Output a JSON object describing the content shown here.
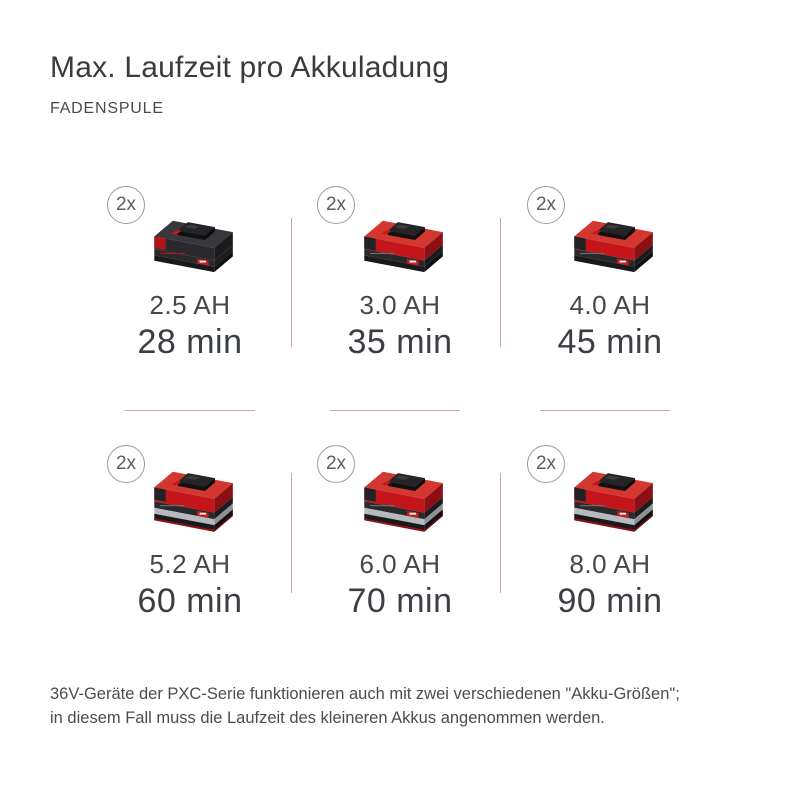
{
  "header": {
    "title": "Max. Laufzeit pro Akkuladung",
    "subtitle": "FADENSPULE"
  },
  "cells": [
    {
      "multiplier": "2x",
      "capacity": "2.5 AH",
      "runtime": "28 min",
      "battery_variant": "slim-black",
      "battery_name": "pxc-battery-2.5ah"
    },
    {
      "multiplier": "2x",
      "capacity": "3.0 AH",
      "runtime": "35 min",
      "battery_variant": "slim-red",
      "battery_name": "pxc-battery-3.0ah"
    },
    {
      "multiplier": "2x",
      "capacity": "4.0 AH",
      "runtime": "45 min",
      "battery_variant": "slim-red",
      "battery_name": "pxc-battery-4.0ah"
    },
    {
      "multiplier": "2x",
      "capacity": "5.2 AH",
      "runtime": "60 min",
      "battery_variant": "tall-red",
      "battery_name": "pxc-battery-5.2ah"
    },
    {
      "multiplier": "2x",
      "capacity": "6.0 AH",
      "runtime": "70 min",
      "battery_variant": "tall-red",
      "battery_name": "pxc-battery-6.0ah"
    },
    {
      "multiplier": "2x",
      "capacity": "8.0 AH",
      "runtime": "90 min",
      "battery_variant": "tall-red",
      "battery_name": "pxc-battery-8.0ah"
    }
  ],
  "footnote": {
    "line1": "36V-Geräte der PXC-Serie funktionieren auch mit zwei verschiedenen \"Akku-Größen\";",
    "line2": "in diesem Fall muss die Laufzeit des kleineren Akkus angenommen werden."
  },
  "colors": {
    "brand_red": "#c4151a",
    "divider_line": "#d2a3a9",
    "title_text": "#3b3b3b",
    "body_text": "#4c4c4c"
  }
}
